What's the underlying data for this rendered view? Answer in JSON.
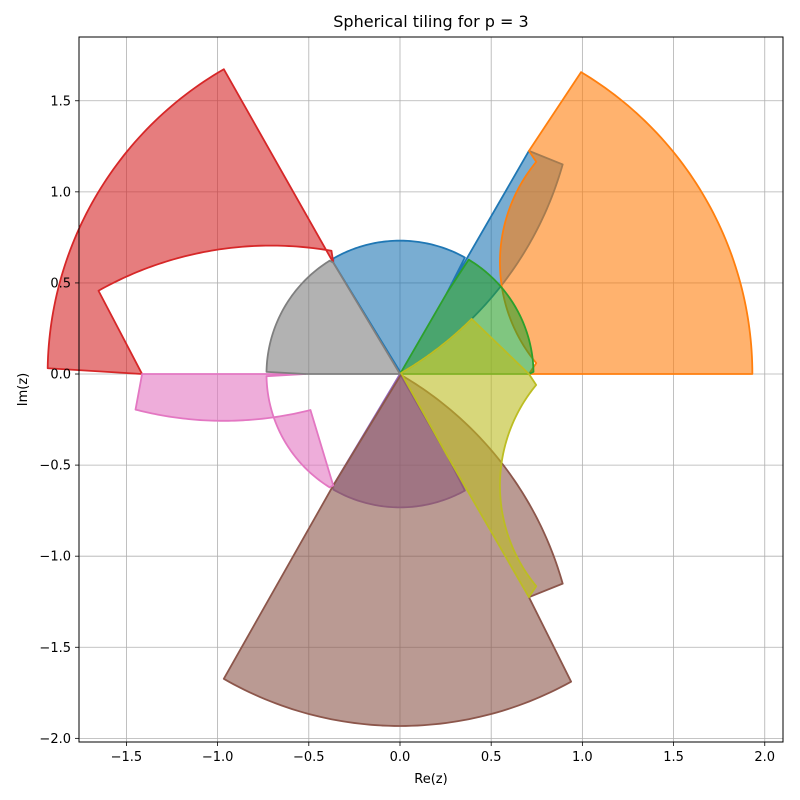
{
  "chart_data": {
    "type": "area",
    "title": "Spherical tiling for p = 3",
    "xlabel": "Re(z)",
    "ylabel": "Im(z)",
    "xlim": [
      -1.76,
      2.1
    ],
    "ylim": [
      -2.02,
      1.85
    ],
    "grid": true,
    "legend": "none",
    "xticks": [
      -1.5,
      -1.0,
      -0.5,
      0.0,
      0.5,
      1.0,
      1.5,
      2.0
    ],
    "xtick_labels": [
      "−1.5",
      "−1.0",
      "−0.5",
      "0.0",
      "0.5",
      "1.0",
      "1.5",
      "2.0"
    ],
    "yticks": [
      -2.0,
      -1.5,
      -1.0,
      -0.5,
      0.0,
      0.5,
      1.0,
      1.5
    ],
    "ytick_labels": [
      "−2.0",
      "−1.5",
      "−1.0",
      "−0.5",
      "0.0",
      "0.5",
      "1.0",
      "1.5"
    ],
    "regions": [
      {
        "color": "#1f77b4",
        "vertices": [
          [
            -0.366,
            0.612
          ],
          [
            0.707,
            1.225
          ],
          [
            0.259,
            0.448
          ]
        ],
        "edges": [
          "circle",
          "line",
          "circle"
        ],
        "circle_centers": [
          [
            -0.966,
            1.673
          ],
          null,
          [
            0.0,
            0.0
          ]
        ],
        "circle_radius": [
          1.93,
          null,
          0.732
        ]
      },
      {
        "color": "#ff7f0e",
        "vertices": [
          [
            0.707,
            0.0
          ],
          [
            1.932,
            0.0
          ],
          [
            0.707,
            1.225
          ]
        ],
        "edges": [
          "line",
          "circle",
          "circle"
        ],
        "circle_centers": [
          null,
          [
            0.0,
            0.0
          ],
          [
            1.414,
            0.612
          ]
        ],
        "circle_radius": [
          null,
          1.932,
          0.866
        ]
      },
      {
        "color": "#2ca02c",
        "vertices": [
          [
            0.0,
            0.0
          ],
          [
            0.707,
            0.0
          ],
          [
            0.259,
            0.448
          ]
        ],
        "edges": [
          "line",
          "circle",
          "line"
        ],
        "circle_centers": [
          null,
          [
            0.0,
            0.0
          ],
          null
        ],
        "circle_radius": [
          null,
          0.732,
          null
        ]
      },
      {
        "color": "#d62728",
        "vertices": [
          [
            -1.414,
            0.0
          ],
          [
            -0.966,
            1.673
          ],
          [
            -0.366,
            0.612
          ]
        ],
        "edges": [
          "circle",
          "line",
          "circle"
        ],
        "circle_centers": [
          [
            0.0,
            0.0
          ],
          null,
          [
            -0.707,
            -1.225
          ]
        ],
        "circle_radius": [
          1.932,
          null,
          1.93
        ]
      },
      {
        "color": "#9467bd",
        "vertices": [
          [
            0.0,
            0.0
          ],
          [
            0.259,
            -0.448
          ],
          [
            -0.366,
            -0.612
          ]
        ],
        "edges": [
          "line",
          "circle",
          "line"
        ],
        "circle_centers": [
          null,
          [
            0.0,
            0.0
          ],
          null
        ],
        "circle_radius": [
          null,
          0.732,
          null
        ]
      },
      {
        "color": "#8c564b",
        "vertices": [
          [
            -0.366,
            -0.612
          ],
          [
            0.707,
            -1.225
          ],
          [
            -0.966,
            -1.673
          ]
        ],
        "edges": [
          "circle",
          "circle",
          "line"
        ],
        "circle_centers": [
          [
            -0.966,
            -1.673
          ],
          [
            0.0,
            0.0
          ],
          null
        ],
        "circle_radius": [
          1.93,
          1.932,
          null
        ]
      },
      {
        "color": "#e377c2",
        "vertices": [
          [
            -1.414,
            0.0
          ],
          [
            -0.518,
            0.0
          ],
          [
            -0.366,
            -0.612
          ]
        ],
        "edges": [
          "line",
          "circle",
          "circle"
        ],
        "circle_centers": [
          null,
          [
            0.0,
            0.0
          ],
          [
            -0.966,
            1.673
          ]
        ],
        "circle_radius": [
          null,
          0.732,
          1.93
        ]
      },
      {
        "color": "#7f7f7f",
        "vertices": [
          [
            0.0,
            0.0
          ],
          [
            -0.366,
            0.612
          ],
          [
            -0.518,
            0.0
          ]
        ],
        "edges": [
          "line",
          "circle",
          "line"
        ],
        "circle_centers": [
          null,
          [
            0.0,
            0.0
          ],
          null
        ],
        "circle_radius": [
          null,
          0.732,
          null
        ]
      },
      {
        "color": "#bcbd22",
        "vertices": [
          [
            0.707,
            0.0
          ],
          [
            0.707,
            -1.225
          ],
          [
            0.259,
            -0.448
          ]
        ],
        "edges": [
          "circle",
          "line",
          "circle"
        ],
        "circle_centers": [
          [
            1.414,
            -0.612
          ],
          null,
          [
            -0.966,
            1.673
          ]
        ],
        "circle_radius": [
          0.866,
          null,
          1.93
        ]
      }
    ]
  }
}
